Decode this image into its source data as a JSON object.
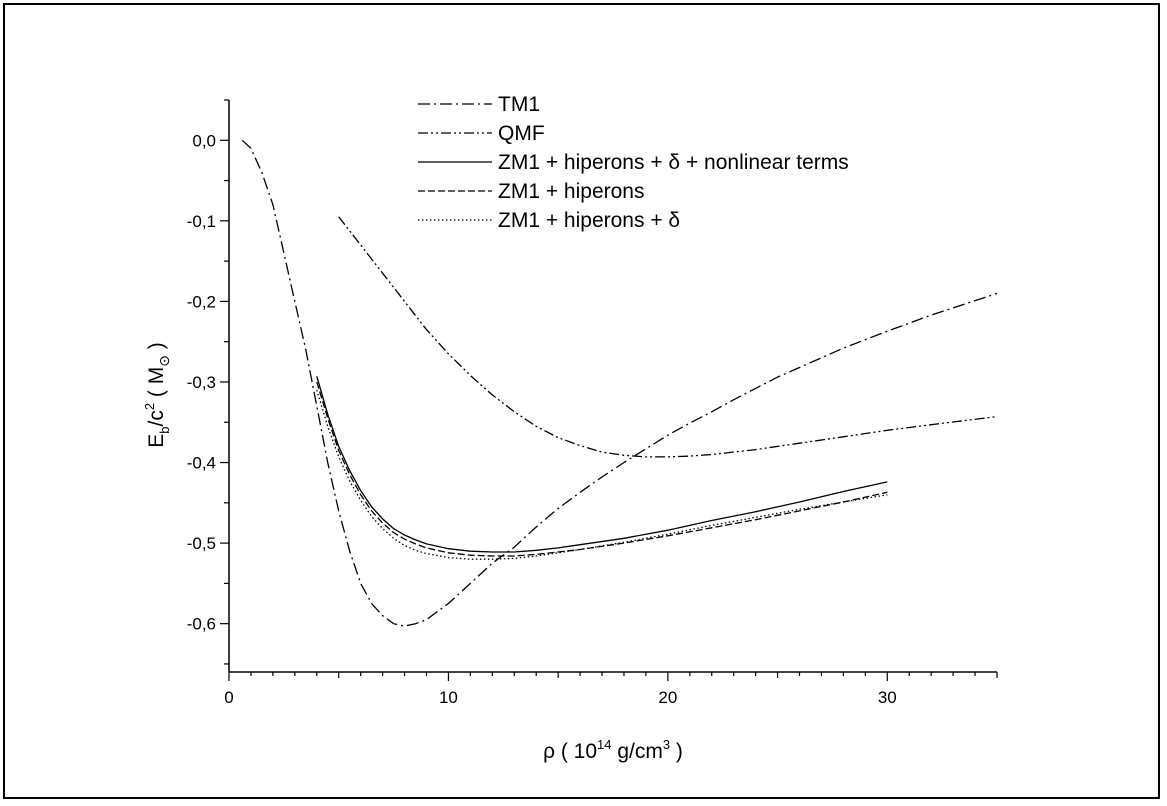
{
  "chart_data": {
    "type": "line",
    "xlabel_main": "ρ ( 10",
    "xlabel_sup": "14",
    "xlabel_mid": " g/cm",
    "xlabel_sup2": "3",
    "xlabel_end": " )",
    "ylabel_main": "E",
    "ylabel_sub": "b",
    "ylabel_mid": "/c",
    "ylabel_sup": "2",
    "ylabel_mid2": " ( M",
    "ylabel_sub2": "⊙",
    "ylabel_end": " )",
    "xlim": [
      0,
      35
    ],
    "ylim": [
      -0.66,
      0.05
    ],
    "x_ticks": [
      0,
      10,
      20,
      30
    ],
    "x_tick_labels": [
      "0",
      "10",
      "20",
      "30"
    ],
    "y_ticks": [
      0.0,
      -0.1,
      -0.2,
      -0.3,
      -0.4,
      -0.5,
      -0.6
    ],
    "y_tick_labels": [
      "0,0",
      "-0,1",
      "-0,2",
      "-0,3",
      "-0,4",
      "-0,5",
      "-0,6"
    ],
    "legend_position": "top-right",
    "series": [
      {
        "name": "TM1",
        "style": "dashdot",
        "x": [
          0.6,
          1.0,
          1.5,
          2.0,
          2.5,
          3.0,
          3.5,
          4.0,
          4.5,
          5.0,
          5.5,
          6.0,
          6.5,
          7.0,
          7.5,
          8.0,
          8.5,
          9.0,
          10.0,
          11.0,
          12.0,
          13.0,
          14.0,
          15.0,
          16.0,
          17.0,
          18.0,
          19.0,
          20.0,
          21.0,
          22.0,
          23.0,
          24.0,
          25.0,
          26.0,
          27.0,
          28.0,
          30.0,
          32.0,
          35.0
        ],
        "y": [
          0.0,
          -0.01,
          -0.04,
          -0.08,
          -0.14,
          -0.2,
          -0.26,
          -0.33,
          -0.4,
          -0.46,
          -0.51,
          -0.55,
          -0.575,
          -0.59,
          -0.6,
          -0.603,
          -0.6,
          -0.595,
          -0.575,
          -0.55,
          -0.525,
          -0.505,
          -0.48,
          -0.457,
          -0.437,
          -0.418,
          -0.4,
          -0.383,
          -0.366,
          -0.351,
          -0.337,
          -0.322,
          -0.308,
          -0.294,
          -0.282,
          -0.27,
          -0.258,
          -0.237,
          -0.217,
          -0.19
        ]
      },
      {
        "name": "QMF",
        "style": "dashdotdot",
        "x": [
          5.0,
          6.0,
          7.0,
          8.0,
          9.0,
          10.0,
          11.0,
          12.0,
          13.0,
          14.0,
          15.0,
          16.0,
          17.0,
          18.0,
          19.0,
          20.0,
          21.0,
          22.0,
          24.0,
          26.0,
          28.0,
          30.0,
          32.0,
          35.0
        ],
        "y": [
          -0.095,
          -0.13,
          -0.165,
          -0.2,
          -0.235,
          -0.265,
          -0.292,
          -0.316,
          -0.337,
          -0.355,
          -0.369,
          -0.379,
          -0.387,
          -0.391,
          -0.393,
          -0.393,
          -0.392,
          -0.39,
          -0.384,
          -0.376,
          -0.368,
          -0.36,
          -0.353,
          -0.343
        ]
      },
      {
        "name": "ZM1 + hiperons + δ + nonlinear terms",
        "style": "solid",
        "x": [
          4.0,
          4.5,
          5.0,
          5.5,
          6.0,
          6.5,
          7.0,
          7.5,
          8.0,
          8.5,
          9.0,
          10.0,
          11.0,
          12.0,
          13.0,
          14.0,
          15.0,
          16.0,
          18.0,
          20.0,
          22.0,
          24.0,
          26.0,
          28.0,
          30.0
        ],
        "y": [
          -0.293,
          -0.34,
          -0.38,
          -0.41,
          -0.435,
          -0.455,
          -0.47,
          -0.482,
          -0.49,
          -0.496,
          -0.501,
          -0.507,
          -0.51,
          -0.511,
          -0.511,
          -0.509,
          -0.506,
          -0.502,
          -0.494,
          -0.484,
          -0.472,
          -0.461,
          -0.449,
          -0.436,
          -0.424
        ]
      },
      {
        "name": "ZM1 + hiperons",
        "style": "dashed",
        "x": [
          4.0,
          4.5,
          5.0,
          5.5,
          6.0,
          6.5,
          7.0,
          7.5,
          8.0,
          8.5,
          9.0,
          10.0,
          11.0,
          12.0,
          13.0,
          14.0,
          15.0,
          16.0,
          18.0,
          20.0,
          22.0,
          24.0,
          26.0,
          28.0,
          30.0
        ],
        "y": [
          -0.3,
          -0.345,
          -0.385,
          -0.415,
          -0.44,
          -0.46,
          -0.475,
          -0.487,
          -0.495,
          -0.501,
          -0.506,
          -0.512,
          -0.515,
          -0.516,
          -0.516,
          -0.514,
          -0.511,
          -0.508,
          -0.5,
          -0.491,
          -0.481,
          -0.471,
          -0.46,
          -0.449,
          -0.437
        ]
      },
      {
        "name": "ZM1 + hiperons + δ",
        "style": "dotted",
        "x": [
          4.0,
          4.5,
          5.0,
          5.5,
          6.0,
          6.5,
          7.0,
          7.5,
          8.0,
          8.5,
          9.0,
          10.0,
          11.0,
          12.0,
          13.0,
          14.0,
          15.0,
          16.0,
          18.0,
          20.0,
          22.0,
          24.0,
          26.0,
          28.0,
          30.0
        ],
        "y": [
          -0.31,
          -0.355,
          -0.393,
          -0.423,
          -0.447,
          -0.467,
          -0.482,
          -0.494,
          -0.503,
          -0.509,
          -0.513,
          -0.518,
          -0.52,
          -0.52,
          -0.519,
          -0.516,
          -0.512,
          -0.508,
          -0.499,
          -0.489,
          -0.478,
          -0.468,
          -0.458,
          -0.449,
          -0.44
        ]
      }
    ]
  }
}
